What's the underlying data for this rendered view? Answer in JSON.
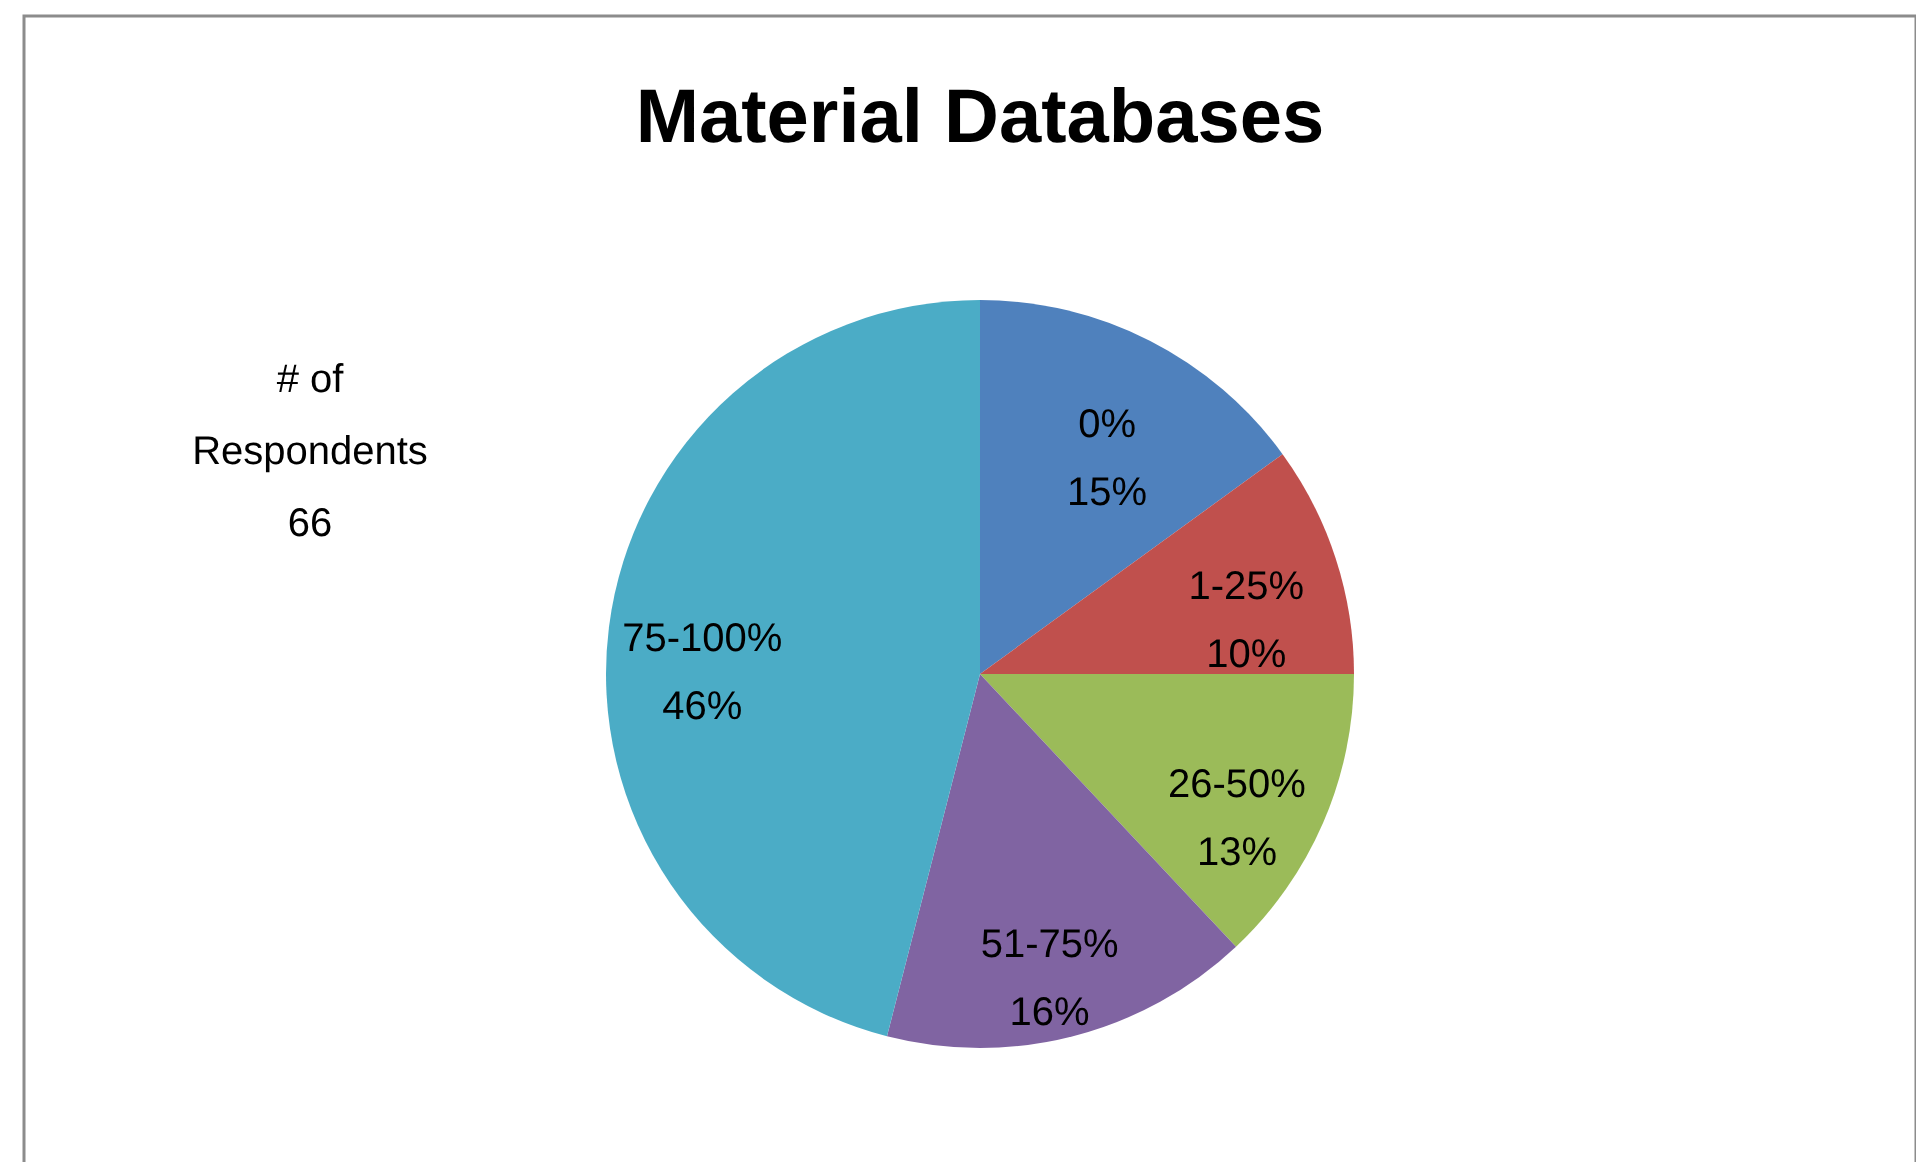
{
  "chart_data": {
    "type": "pie",
    "title": "Material Databases",
    "categories": [
      "0%",
      "1-25%",
      "26-50%",
      "51-75%",
      "75-100%"
    ],
    "values": [
      15,
      10,
      13,
      16,
      46
    ],
    "value_labels": [
      "15%",
      "10%",
      "13%",
      "16%",
      "46%"
    ],
    "colors": [
      "#4f81bd",
      "#c0504d",
      "#9bbb59",
      "#8064a2",
      "#4bacc6"
    ],
    "annotations": [
      "# of\nRespondents\n66"
    ]
  }
}
